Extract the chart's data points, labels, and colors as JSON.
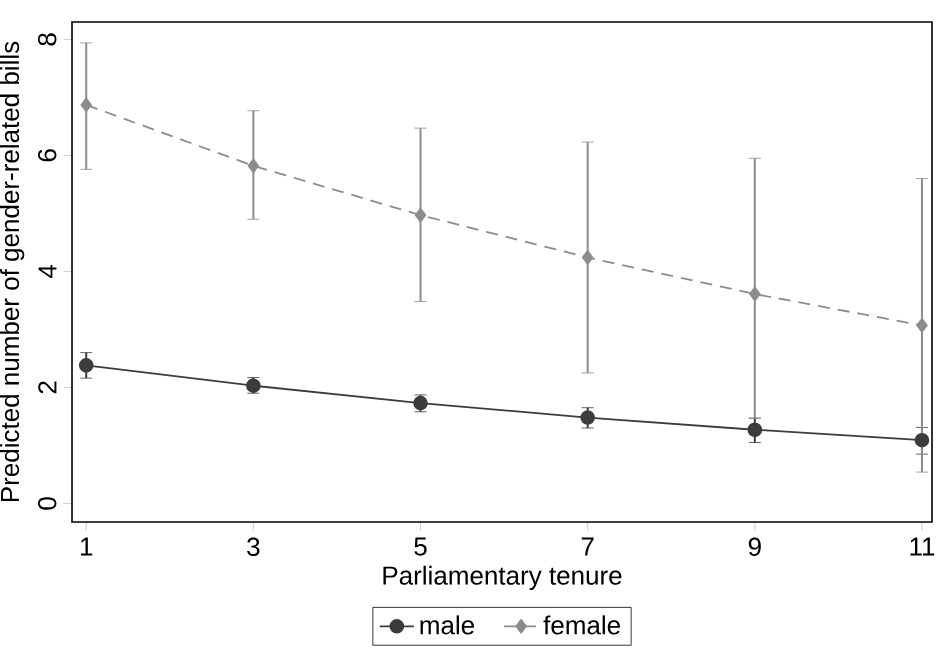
{
  "chart_data": {
    "type": "line",
    "xlabel": "Parliamentary tenure",
    "ylabel": "Predicted number of gender-related bills",
    "x": [
      1,
      3,
      5,
      7,
      9,
      11
    ],
    "xlim": [
      0.83,
      11.12
    ],
    "ylim": [
      -0.32,
      8.3
    ],
    "xticks": [
      1,
      3,
      5,
      7,
      9,
      11
    ],
    "yticks": [
      0,
      2,
      4,
      6,
      8
    ],
    "legend": "bottom",
    "grid": false,
    "series": [
      {
        "name": "male",
        "color": "#3c3c3c",
        "marker": "circle",
        "line_style": "solid",
        "values": [
          2.38,
          2.03,
          1.73,
          1.48,
          1.27,
          1.09
        ],
        "errors": [
          [
            2.16,
            2.6
          ],
          [
            1.9,
            2.17
          ],
          [
            1.58,
            1.87
          ],
          [
            1.3,
            1.65
          ],
          [
            1.05,
            1.47
          ],
          [
            0.85,
            1.31
          ]
        ]
      },
      {
        "name": "female",
        "color": "#8c8c8c",
        "marker": "diamond",
        "line_style": "dashed",
        "values": [
          6.87,
          5.82,
          4.97,
          4.24,
          3.61,
          3.07
        ],
        "errors": [
          [
            5.76,
            7.94
          ],
          [
            4.9,
            6.77
          ],
          [
            3.48,
            6.47
          ],
          [
            2.25,
            6.23
          ],
          [
            1.47,
            5.95
          ],
          [
            0.54,
            5.6
          ]
        ]
      }
    ]
  }
}
